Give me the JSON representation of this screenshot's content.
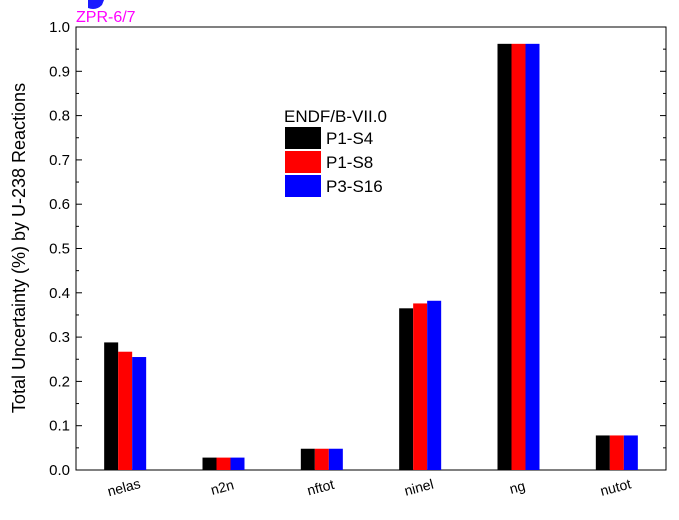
{
  "chart_data": {
    "type": "bar",
    "annotation": "ZPR-6/7",
    "annotation_color": "#ff00ff",
    "title_fragment_color": "#1a1aff",
    "ylabel": "Total Uncertainty (%) by U-238 Reactions",
    "xlabel": "",
    "ylim": [
      0.0,
      1.0
    ],
    "yticks": [
      "0.0",
      "0.1",
      "0.2",
      "0.3",
      "0.4",
      "0.5",
      "0.6",
      "0.7",
      "0.8",
      "0.9",
      "1.0"
    ],
    "categories": [
      "nelas",
      "n2n",
      "nftot",
      "ninel",
      "ng",
      "nutot"
    ],
    "legend_title": "ENDF/B-VII.0",
    "legend_position": "top-center",
    "series": [
      {
        "name": "P1-S4",
        "color": "#000000",
        "values": [
          0.288,
          0.028,
          0.048,
          0.365,
          0.962,
          0.078
        ]
      },
      {
        "name": "P1-S8",
        "color": "#ff0000",
        "values": [
          0.267,
          0.028,
          0.048,
          0.376,
          0.962,
          0.078
        ]
      },
      {
        "name": "P3-S16",
        "color": "#0000ff",
        "values": [
          0.255,
          0.028,
          0.048,
          0.382,
          0.962,
          0.078
        ]
      }
    ]
  }
}
